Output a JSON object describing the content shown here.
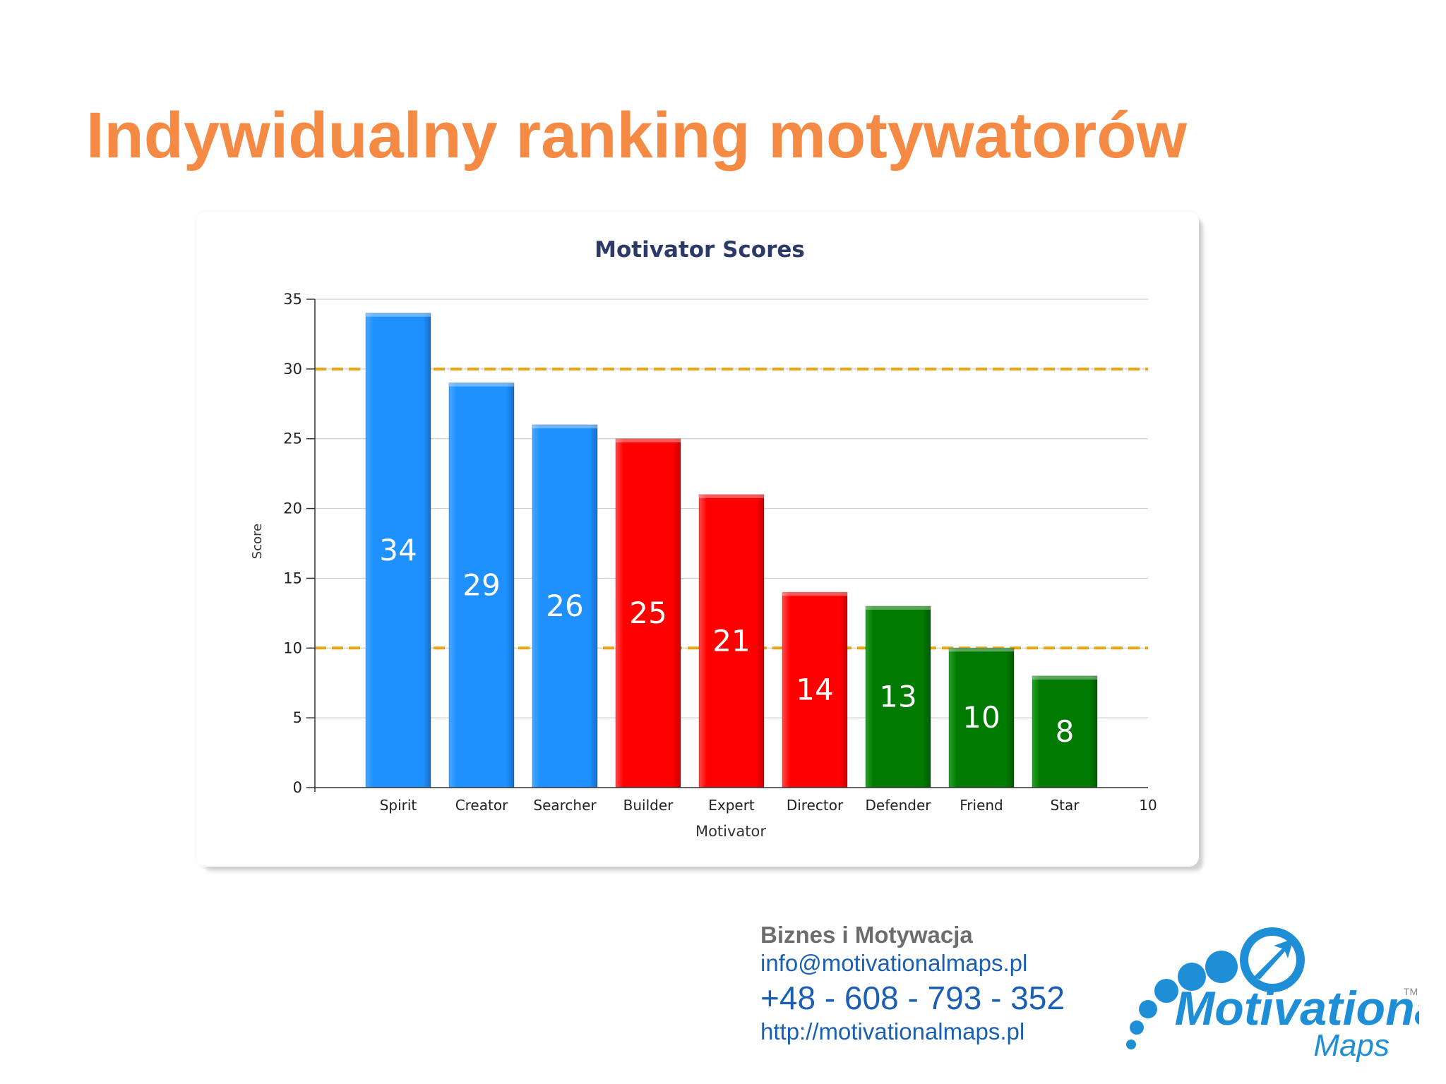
{
  "page_title": "Indywidualny ranking motywatorów",
  "footer": {
    "org": "Biznes i Motywacja",
    "email": "info@motivationalmaps.pl",
    "phone": "+48 - 608 - 793 - 352",
    "website": "http://motivationalmaps.pl"
  },
  "logo": {
    "wordmark": "Motivational",
    "subword": "Maps",
    "tm": "TM",
    "icon": "bubbles-arrow-icon",
    "color": "#1e8fd6"
  },
  "chart_data": {
    "type": "bar",
    "title": "Motivator Scores",
    "xlabel": "Motivator",
    "ylabel": "Score",
    "categories": [
      "Spirit",
      "Creator",
      "Searcher",
      "Builder",
      "Expert",
      "Director",
      "Defender",
      "Friend",
      "Star"
    ],
    "values": [
      34,
      29,
      26,
      25,
      21,
      14,
      13,
      10,
      8
    ],
    "bar_colors": [
      "#1e90ff",
      "#1e90ff",
      "#1e90ff",
      "#ff0000",
      "#ff0000",
      "#ff0000",
      "#007a00",
      "#007a00",
      "#007a00"
    ],
    "trailing_x_tick": "10",
    "ylim": [
      0,
      35
    ],
    "yticks": [
      0,
      5,
      10,
      15,
      20,
      25,
      30,
      35
    ],
    "reference_lines": [
      30,
      10
    ],
    "reference_line_color": "#e8a317",
    "grid": true,
    "data_labels": true
  }
}
